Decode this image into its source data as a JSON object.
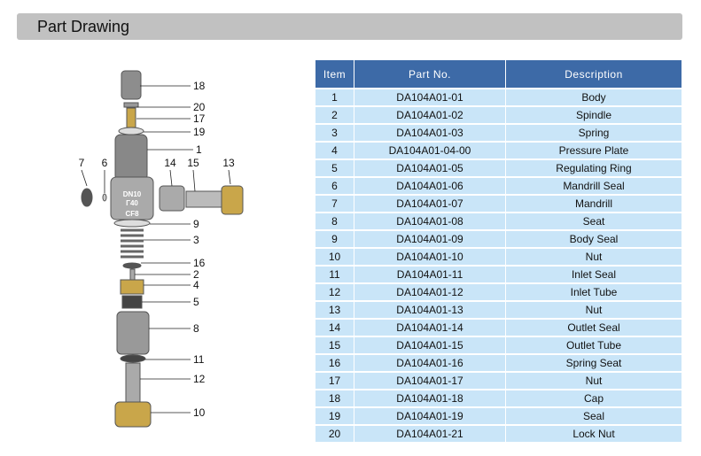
{
  "header": {
    "title": "Part Drawing"
  },
  "drawing": {
    "body_marking": [
      "DN10",
      "Γ40",
      "CF8"
    ],
    "callouts": [
      {
        "label": "18"
      },
      {
        "label": "20"
      },
      {
        "label": "17"
      },
      {
        "label": "19"
      },
      {
        "label": "1"
      },
      {
        "label": "7"
      },
      {
        "label": "6"
      },
      {
        "label": "14"
      },
      {
        "label": "15"
      },
      {
        "label": "13"
      },
      {
        "label": "9"
      },
      {
        "label": "3"
      },
      {
        "label": "16"
      },
      {
        "label": "2"
      },
      {
        "label": "4"
      },
      {
        "label": "5"
      },
      {
        "label": "8"
      },
      {
        "label": "11"
      },
      {
        "label": "12"
      },
      {
        "label": "10"
      }
    ]
  },
  "table": {
    "headers": [
      "Item",
      "Part No.",
      "Description"
    ],
    "rows": [
      [
        "1",
        "DA104A01-01",
        "Body"
      ],
      [
        "2",
        "DA104A01-02",
        "Spindle"
      ],
      [
        "3",
        "DA104A01-03",
        "Spring"
      ],
      [
        "4",
        "DA104A01-04-00",
        "Pressure Plate"
      ],
      [
        "5",
        "DA104A01-05",
        "Regulating Ring"
      ],
      [
        "6",
        "DA104A01-06",
        "Mandrill Seal"
      ],
      [
        "7",
        "DA104A01-07",
        "Mandrill"
      ],
      [
        "8",
        "DA104A01-08",
        "Seat"
      ],
      [
        "9",
        "DA104A01-09",
        "Body Seal"
      ],
      [
        "10",
        "DA104A01-10",
        "Nut"
      ],
      [
        "11",
        "DA104A01-11",
        "Inlet Seal"
      ],
      [
        "12",
        "DA104A01-12",
        "Inlet Tube"
      ],
      [
        "13",
        "DA104A01-13",
        "Nut"
      ],
      [
        "14",
        "DA104A01-14",
        "Outlet Seal"
      ],
      [
        "15",
        "DA104A01-15",
        "Outlet Tube"
      ],
      [
        "16",
        "DA104A01-16",
        "Spring Seat"
      ],
      [
        "17",
        "DA104A01-17",
        "Nut"
      ],
      [
        "18",
        "DA104A01-18",
        "Cap"
      ],
      [
        "19",
        "DA104A01-19",
        "Seal"
      ],
      [
        "20",
        "DA104A01-21",
        "Lock Nut"
      ]
    ]
  },
  "colors": {
    "header_bg": "#c1c1c1",
    "table_header": "#3d6aa7",
    "table_row": "#c9e5f8",
    "brass": "#c9a64a",
    "steel": "#9a9a9a"
  }
}
